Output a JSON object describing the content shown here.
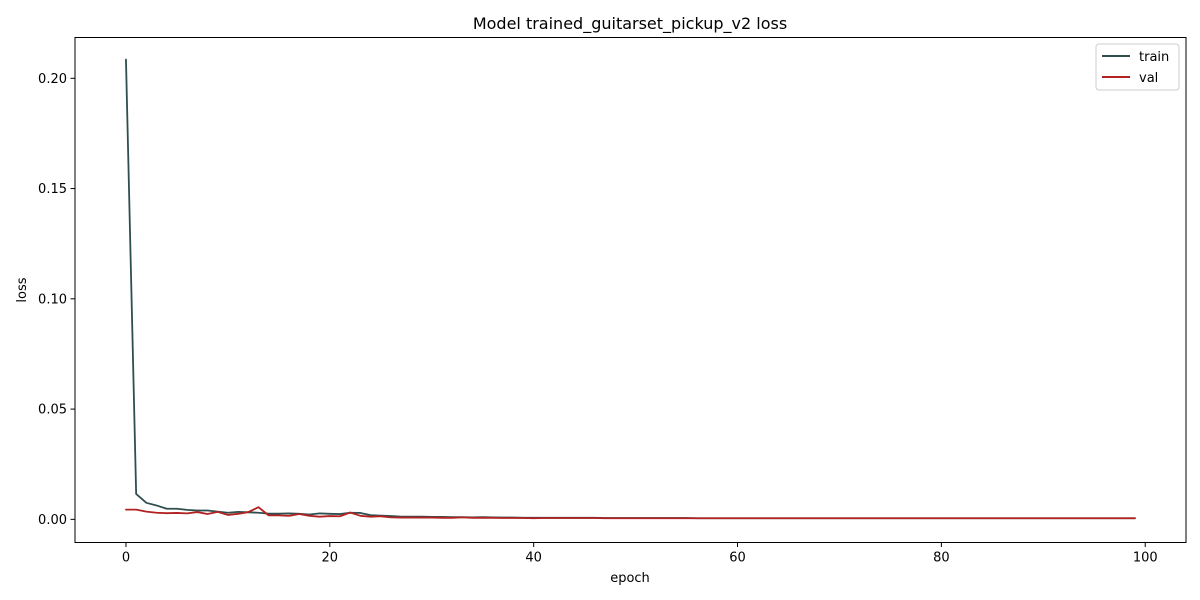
{
  "chart_data": {
    "type": "line",
    "title": "Model trained_guitarset_pickup_v2 loss",
    "xlabel": "epoch",
    "ylabel": "loss",
    "xlim": [
      -5,
      104
    ],
    "ylim": [
      -0.0105,
      0.2185
    ],
    "xticks": [
      0,
      20,
      40,
      60,
      80,
      100
    ],
    "yticks": [
      0.0,
      0.05,
      0.1,
      0.15,
      0.2
    ],
    "ytick_labels": [
      "0.00",
      "0.05",
      "0.10",
      "0.15",
      "0.20"
    ],
    "grid": false,
    "legend_position": "top-right",
    "series": [
      {
        "name": "train",
        "color": "#2f4f4f",
        "x": [
          0,
          1,
          2,
          3,
          4,
          5,
          6,
          7,
          8,
          9,
          10,
          11,
          12,
          13,
          14,
          15,
          16,
          17,
          18,
          19,
          20,
          21,
          22,
          23,
          24,
          25,
          26,
          27,
          28,
          29,
          30,
          31,
          32,
          33,
          34,
          35,
          36,
          37,
          38,
          39,
          40,
          41,
          42,
          43,
          44,
          45,
          46,
          47,
          48,
          49,
          50,
          51,
          52,
          53,
          54,
          55,
          56,
          57,
          58,
          59,
          60,
          61,
          62,
          63,
          64,
          65,
          66,
          67,
          68,
          69,
          70,
          71,
          72,
          73,
          74,
          75,
          76,
          77,
          78,
          79,
          80,
          81,
          82,
          83,
          84,
          85,
          86,
          87,
          88,
          89,
          90,
          91,
          92,
          93,
          94,
          95,
          96,
          97,
          98,
          99
        ],
        "values": [
          0.2085,
          0.0115,
          0.0075,
          0.0063,
          0.0048,
          0.0048,
          0.0043,
          0.004,
          0.004,
          0.0035,
          0.003,
          0.0034,
          0.0032,
          0.003,
          0.0026,
          0.0026,
          0.0027,
          0.0025,
          0.0022,
          0.0027,
          0.0025,
          0.0024,
          0.003,
          0.0029,
          0.0019,
          0.0017,
          0.0015,
          0.0012,
          0.0012,
          0.0012,
          0.0011,
          0.0011,
          0.001,
          0.001,
          0.0009,
          0.001,
          0.0009,
          0.0008,
          0.0008,
          0.0007,
          0.0007,
          0.0007,
          0.0007,
          0.0007,
          0.0007,
          0.0007,
          0.0007,
          0.0006,
          0.0006,
          0.0006,
          0.0006,
          0.0006,
          0.0006,
          0.0006,
          0.0006,
          0.0006,
          0.0005,
          0.0005,
          0.0005,
          0.0005,
          0.0005,
          0.0005,
          0.0005,
          0.0005,
          0.0005,
          0.0005,
          0.0005,
          0.0005,
          0.0005,
          0.0005,
          0.0005,
          0.0005,
          0.0005,
          0.0005,
          0.0005,
          0.0005,
          0.0005,
          0.0005,
          0.0005,
          0.0005,
          0.0005,
          0.0005,
          0.0005,
          0.0005,
          0.0005,
          0.0005,
          0.0005,
          0.0005,
          0.0005,
          0.0005,
          0.0005,
          0.0005,
          0.0005,
          0.0005,
          0.0005,
          0.0005,
          0.0005,
          0.0005,
          0.0005,
          0.0005
        ]
      },
      {
        "name": "val",
        "color": "#b22222",
        "x": [
          0,
          1,
          2,
          3,
          4,
          5,
          6,
          7,
          8,
          9,
          10,
          11,
          12,
          13,
          14,
          15,
          16,
          17,
          18,
          19,
          20,
          21,
          22,
          23,
          24,
          25,
          26,
          27,
          28,
          29,
          30,
          31,
          32,
          33,
          34,
          35,
          36,
          37,
          38,
          39,
          40,
          41,
          42,
          43,
          44,
          45,
          46,
          47,
          48,
          49,
          50,
          51,
          52,
          53,
          54,
          55,
          56,
          57,
          58,
          59,
          60,
          61,
          62,
          63,
          64,
          65,
          66,
          67,
          68,
          69,
          70,
          71,
          72,
          73,
          74,
          75,
          76,
          77,
          78,
          79,
          80,
          81,
          82,
          83,
          84,
          85,
          86,
          87,
          88,
          89,
          90,
          91,
          92,
          93,
          94,
          95,
          96,
          97,
          98,
          99
        ],
        "values": [
          0.0044,
          0.0044,
          0.0035,
          0.003,
          0.0028,
          0.0029,
          0.0027,
          0.0033,
          0.0024,
          0.0034,
          0.002,
          0.0025,
          0.0033,
          0.0055,
          0.0018,
          0.0018,
          0.0016,
          0.0024,
          0.0016,
          0.0012,
          0.0015,
          0.0014,
          0.0031,
          0.0016,
          0.0012,
          0.0014,
          0.0009,
          0.0008,
          0.0008,
          0.0008,
          0.0008,
          0.0007,
          0.0007,
          0.0009,
          0.0007,
          0.0007,
          0.0007,
          0.0006,
          0.0006,
          0.0006,
          0.0005,
          0.0006,
          0.0006,
          0.0006,
          0.0006,
          0.0006,
          0.0006,
          0.0005,
          0.0005,
          0.0005,
          0.0005,
          0.0005,
          0.0005,
          0.0005,
          0.0005,
          0.0005,
          0.0005,
          0.0005,
          0.0005,
          0.0005,
          0.0005,
          0.0005,
          0.0005,
          0.0005,
          0.0005,
          0.0005,
          0.0005,
          0.0005,
          0.0005,
          0.0005,
          0.0005,
          0.0005,
          0.0005,
          0.0005,
          0.0005,
          0.0005,
          0.0005,
          0.0005,
          0.0005,
          0.0005,
          0.0005,
          0.0005,
          0.0005,
          0.0005,
          0.0005,
          0.0005,
          0.0005,
          0.0005,
          0.0005,
          0.0005,
          0.0005,
          0.0005,
          0.0005,
          0.0005,
          0.0005,
          0.0005,
          0.0005,
          0.0005,
          0.0005,
          0.0005
        ]
      }
    ]
  }
}
